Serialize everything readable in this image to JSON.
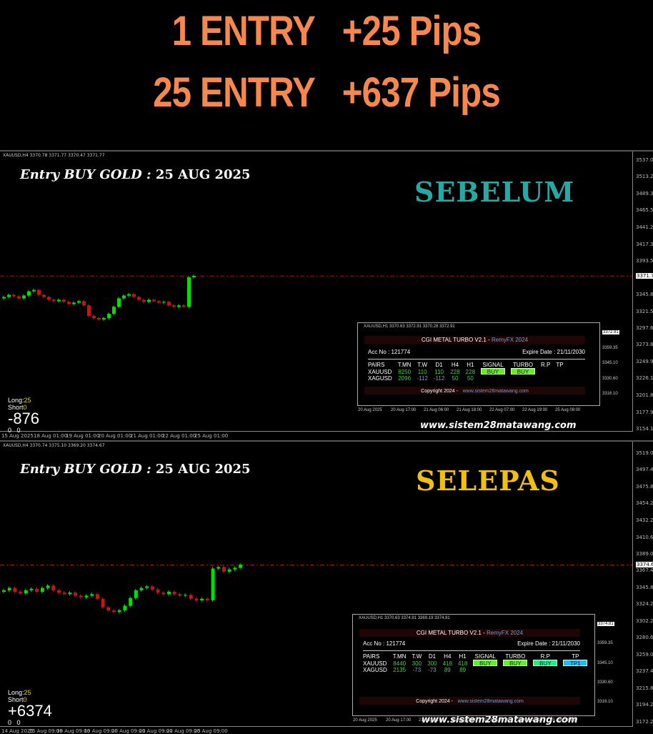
{
  "headlines": [
    "1 ENTRY   +25 Pips",
    "25 ENTRY   +637 Pips"
  ],
  "colors": {
    "headline": "#f5874f",
    "bull": "#00e000",
    "bear": "#c01818",
    "sebelum": "#27a8a4",
    "selepas": "#f0c010",
    "price_line": "#a01010"
  },
  "charts": [
    {
      "symbol_line": "XAUUSD,H4  3370.78 3371.77 3370.47 3371.77",
      "entry_label": "Entry BUY GOLD : ",
      "entry_date": "25 AUG 2025",
      "stamp": "SEBELUM",
      "long_label": "Long:",
      "long": "25",
      "short_label": "Short",
      "short": "0",
      "profit": "-876",
      "zeros": [
        "0",
        "0"
      ],
      "url": "www.sistem28matawang.com",
      "y_ticks": [
        "3537.05",
        "3513.20",
        "3489.35",
        "3465.50",
        "3441.20",
        "3417.35",
        "3393.50",
        "3345.80",
        "3321.50",
        "3297.65",
        "3273.80",
        "3249.95",
        "3226.10",
        "3201.80",
        "3177.95",
        "3154.10"
      ],
      "current_price": "3371.77",
      "x_ticks": [
        "15 Aug 2025",
        "18 Aug 01:00",
        "19 Aug 01:00",
        "20 Aug 01:00",
        "21 Aug 01:00",
        "22 Aug 01:00",
        "25 Aug 01:00"
      ],
      "closes": [
        3342,
        3345,
        3343,
        3340,
        3344,
        3350,
        3352,
        3345,
        3342,
        3338,
        3336,
        3338,
        3335,
        3332,
        3334,
        3336,
        3330,
        3315,
        3312,
        3310,
        3312,
        3318,
        3328,
        3340,
        3344,
        3346,
        3342,
        3338,
        3335,
        3338,
        3336,
        3334,
        3335,
        3330,
        3328,
        3330,
        3328,
        3370,
        3372
      ],
      "panel": {
        "symbol_line": "XAUUSD,H1  3370.63 3372.91 3370.28 3372.91",
        "title": "CGI METAL TURBO V2.1  -",
        "brand": "RemyFX 2024",
        "acc": "Acc No : 121774",
        "expire": "Expire Date : 21/11/2030",
        "headers": [
          "PAIRS",
          "T.MN",
          "T.W",
          "D1",
          "H4",
          "H1",
          "SIGNAL",
          "TURBO",
          "R.P",
          "TP"
        ],
        "rows": [
          [
            "XAUUSD",
            "8250",
            "110",
            "110",
            "228",
            "228"
          ],
          [
            "XAGUSD",
            "2096",
            "-112",
            "-112",
            "50",
            "50"
          ]
        ],
        "badges": [
          {
            "text": "BUY",
            "color": "#66ee22"
          },
          {
            "text": "BUY",
            "color": "#66ee22"
          }
        ],
        "copyright": "Copyright 2024 -",
        "site": "www.sistem28matawang.com",
        "axis": [
          "3372.91",
          "3359.35",
          "3345.10",
          "3330.60",
          "3316.10"
        ],
        "x_ticks": [
          "20 Aug 2025",
          "20 Aug 17:00",
          "21 Aug 06:00",
          "21 Aug 18:00",
          "22 Aug 07:00",
          "22 Aug 19:00",
          "25 Aug 08:00"
        ]
      }
    },
    {
      "symbol_line": "XAUUSD,H4  3370.74 3375.10 3369.20 3374.67",
      "entry_label": "Entry BUY GOLD : ",
      "entry_date": "25 AUG 2025",
      "stamp": "SELEPAS",
      "long_label": "Long:",
      "long": "25",
      "short_label": "Short",
      "short": "0",
      "profit": "+6374",
      "zeros": [
        "0",
        "0"
      ],
      "url": "www.sistem28matawang.com",
      "y_ticks": [
        "3519.00",
        "3497.40",
        "3475.80",
        "3454.20",
        "3432.20",
        "3410.60",
        "3389.00",
        "3367.40",
        "3345.80",
        "3324.20",
        "3302.20",
        "3280.60",
        "3259.00",
        "3237.40",
        "3215.80",
        "3194.20",
        "3172.20"
      ],
      "current_price": "3374.67",
      "x_ticks": [
        "14 Aug 2025",
        "15 Aug 09:00",
        "18 Aug 09:00",
        "19 Aug 09:00",
        "20 Aug 09:00",
        "21 Aug 09:00",
        "22 Aug 09:00",
        "25 Aug 09:00"
      ],
      "closes": [
        3342,
        3345,
        3340,
        3338,
        3342,
        3344,
        3340,
        3345,
        3348,
        3342,
        3339,
        3337,
        3339,
        3335,
        3333,
        3335,
        3337,
        3331,
        3320,
        3316,
        3314,
        3316,
        3322,
        3332,
        3342,
        3345,
        3347,
        3343,
        3339,
        3337,
        3340,
        3337,
        3335,
        3336,
        3331,
        3329,
        3331,
        3329,
        3370,
        3372,
        3366,
        3369,
        3371,
        3375
      ],
      "panel": {
        "symbol_line": "XAUUSD,H1  3370.63 3374.81 3369.19 3374.81",
        "title": "CGI METAL TURBO V2.1  -",
        "brand": "RemyFX 2024",
        "acc": "Acc No : 121774",
        "expire": "Expire Date : 21/11/2030",
        "headers": [
          "PAIRS",
          "T.MN",
          "T.W",
          "D1",
          "H4",
          "H1",
          "SIGNAL",
          "TURBO",
          "R.P",
          "TP"
        ],
        "rows": [
          [
            "XAUUSD",
            "8440",
            "300",
            "300",
            "418",
            "418"
          ],
          [
            "XAGUSD",
            "2135",
            "-73",
            "-73",
            "89",
            "89"
          ]
        ],
        "badges": [
          {
            "text": "BUY",
            "color": "#66ee22"
          },
          {
            "text": "BUY",
            "color": "#66ee22"
          },
          {
            "text": "BUY",
            "color": "#22ee88"
          },
          {
            "text": "TP1",
            "color": "#22bbee"
          }
        ],
        "copyright": "Copyright 2024 -",
        "site": "www.sistem28matawang.com",
        "axis": [
          "3374.81",
          "3359.35",
          "3345.10",
          "3330.60",
          "3316.10"
        ],
        "x_ticks": [
          "20 Aug 2025",
          "20 Aug 17:00",
          "21 Aug 06:00",
          "21 Aug 18:00",
          "22 Aug 07:00",
          "22 Aug 19:00",
          "25 Aug 08:00"
        ]
      }
    }
  ]
}
